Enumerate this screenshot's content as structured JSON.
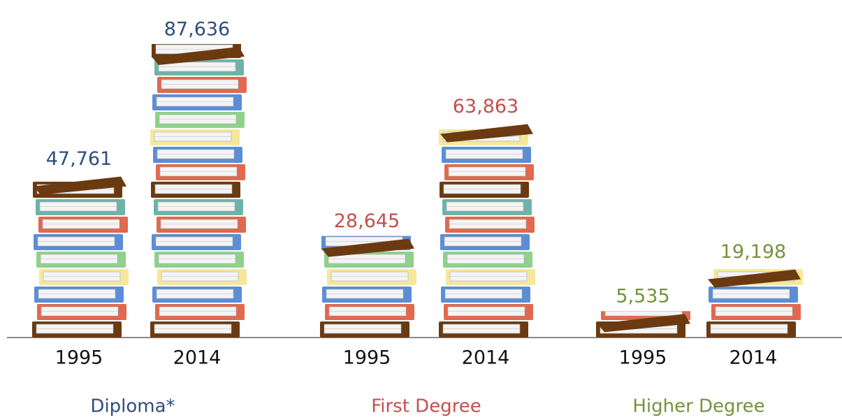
{
  "chart_data": {
    "type": "pictogram",
    "groups": [
      {
        "name": "Diploma*",
        "color": "#2e4e7e",
        "categories": [
          "1995",
          "2014"
        ],
        "values": [
          47761,
          87636
        ],
        "value_labels": [
          "47,761",
          "87,636"
        ]
      },
      {
        "name": "First Degree",
        "color": "#c0504d",
        "categories": [
          "1995",
          "2014"
        ],
        "values": [
          28645,
          63863
        ],
        "value_labels": [
          "28,645",
          "63,863"
        ]
      },
      {
        "name": "Higher Degree",
        "color": "#76923c",
        "categories": [
          "1995",
          "2014"
        ],
        "values": [
          5535,
          19198
        ],
        "value_labels": [
          "5,535",
          "19,198"
        ]
      }
    ]
  }
}
